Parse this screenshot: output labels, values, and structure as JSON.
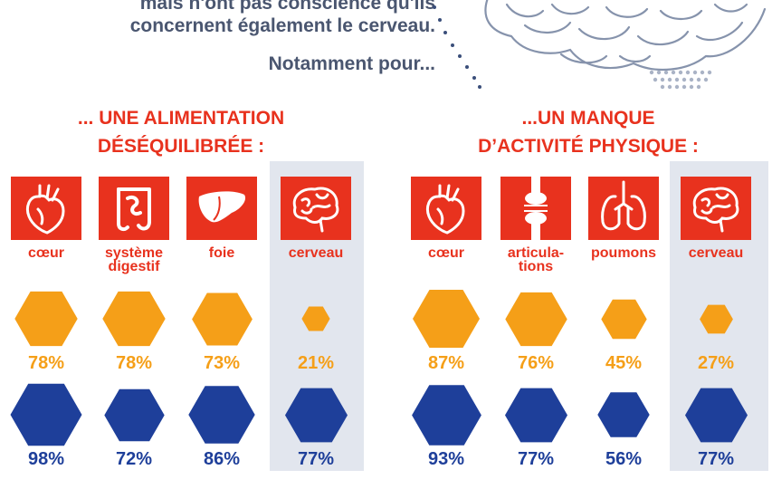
{
  "intro": {
    "line1": "mais n'ont pas conscience qu'ils",
    "line2": "concernent également le cerveau.",
    "line3": "Notamment pour..."
  },
  "colors": {
    "red": "#e8321e",
    "orange": "#f59f18",
    "blue": "#1e3f9a",
    "shade": "#e2e6ee",
    "text": "#4a5670"
  },
  "chart_data": [
    {
      "type": "bar",
      "title": "... UNE ALIMENTATION DÉSÉQUILIBRÉE :",
      "title_lines": [
        "... UNE ALIMENTATION",
        "DÉSÉQUILIBRÉE :"
      ],
      "categories": [
        "cœur",
        "système digestif",
        "foie",
        "cerveau"
      ],
      "category_lines": [
        [
          "cœur"
        ],
        [
          "système",
          "digestif"
        ],
        [
          "foie"
        ],
        [
          "cerveau"
        ]
      ],
      "icons": [
        "heart-icon",
        "intestine-icon",
        "liver-icon",
        "brain-icon"
      ],
      "highlight": "cerveau",
      "series": [
        {
          "color": "#f59f18",
          "values": [
            78,
            78,
            73,
            21
          ],
          "labels": [
            "78%",
            "78%",
            "73%",
            "21%"
          ]
        },
        {
          "color": "#1e3f9a",
          "values": [
            98,
            72,
            86,
            77
          ],
          "labels": [
            "98%",
            "72%",
            "86%",
            "77%"
          ]
        }
      ]
    },
    {
      "type": "bar",
      "title": "...UN MANQUE D'ACTIVITÉ PHYSIQUE :",
      "title_lines": [
        "...UN MANQUE",
        "D’ACTIVITÉ PHYSIQUE :"
      ],
      "categories": [
        "cœur",
        "articulations",
        "poumons",
        "cerveau"
      ],
      "category_lines": [
        [
          "cœur"
        ],
        [
          "articula-",
          "tions"
        ],
        [
          "poumons"
        ],
        [
          "cerveau"
        ]
      ],
      "icons": [
        "heart-icon",
        "joint-icon",
        "lungs-icon",
        "brain-icon"
      ],
      "highlight": "cerveau",
      "series": [
        {
          "color": "#f59f18",
          "values": [
            87,
            76,
            45,
            27
          ],
          "labels": [
            "87%",
            "76%",
            "45%",
            "27%"
          ]
        },
        {
          "color": "#1e3f9a",
          "values": [
            93,
            77,
            56,
            77
          ],
          "labels": [
            "93%",
            "77%",
            "56%",
            "77%"
          ]
        }
      ]
    }
  ]
}
